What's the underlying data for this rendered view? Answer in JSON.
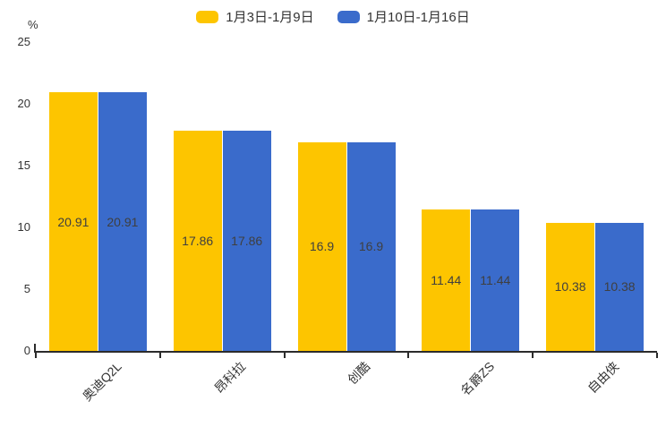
{
  "unit_label": "%",
  "chart_data": {
    "type": "bar",
    "categories": [
      "奥迪Q2L",
      "昂科拉",
      "创酷",
      "名爵ZS",
      "自由侠"
    ],
    "series": [
      {
        "name": "1月3日-1月9日",
        "color": "#FDC500",
        "values": [
          20.91,
          17.86,
          16.9,
          11.44,
          10.38
        ]
      },
      {
        "name": "1月10日-1月16日",
        "color": "#3A6BCB",
        "values": [
          20.91,
          17.86,
          16.9,
          11.44,
          10.38
        ]
      }
    ],
    "title": "",
    "xlabel": "",
    "ylabel": "%",
    "ylim": [
      0,
      25
    ],
    "yticks": [
      0,
      5,
      10,
      15,
      20,
      25
    ],
    "legend_position": "top-center",
    "grid": false,
    "value_labels": "inside-center",
    "label_color": "#3f3f3f",
    "axis_color": "#2b2b2b"
  }
}
